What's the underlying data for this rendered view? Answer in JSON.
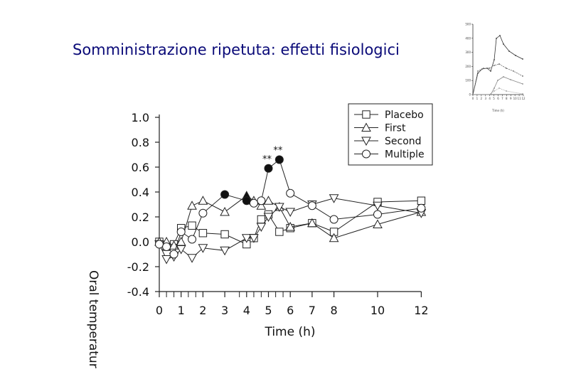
{
  "slide": {
    "title": "Somministrazione ripetuta: effetti fisiologici"
  },
  "chart_data": {
    "type": "line",
    "xlabel": "Time (h)",
    "ylabel": "Oral temperatur",
    "xlim": [
      0,
      12
    ],
    "ylim": [
      -0.4,
      1.0
    ],
    "xticks": [
      0,
      1,
      2,
      3,
      4,
      5,
      6,
      7,
      8,
      10,
      12
    ],
    "yticks": [
      1.0,
      0.8,
      0.6,
      0.4,
      0.2,
      0.0,
      -0.2,
      -0.4
    ],
    "ytick_labels": [
      "1.0",
      "0.8",
      "0.6",
      "0.4",
      "0.2",
      "0.0",
      "-0.2",
      "-0.4"
    ],
    "minor_xticks": [
      0.33,
      0.67,
      1.33,
      1.67,
      3.67,
      4.33,
      4.67,
      5.33,
      5.67
    ],
    "grid": false,
    "legend_position": "top-right",
    "series": [
      {
        "name": "Placebo",
        "marker": "square",
        "points": [
          [
            0,
            0.0
          ],
          [
            0.33,
            -0.04
          ],
          [
            0.67,
            -0.02
          ],
          [
            1,
            0.11
          ],
          [
            1.5,
            0.13
          ],
          [
            2,
            0.07
          ],
          [
            3,
            0.06
          ],
          [
            4,
            -0.02
          ],
          [
            4.33,
            0.03
          ],
          [
            4.67,
            0.18
          ],
          [
            5,
            0.22
          ],
          [
            5.5,
            0.08
          ],
          [
            6,
            0.11
          ],
          [
            7,
            0.15
          ],
          [
            8,
            0.08
          ],
          [
            10,
            0.32
          ],
          [
            12,
            0.33
          ]
        ]
      },
      {
        "name": "First",
        "marker": "triangle-up",
        "points": [
          [
            0,
            0.0
          ],
          [
            0.33,
            0.0
          ],
          [
            0.67,
            -0.03
          ],
          [
            1,
            0.0
          ],
          [
            1.5,
            0.29
          ],
          [
            2,
            0.33
          ],
          [
            3,
            0.24
          ],
          [
            4,
            0.37
          ],
          [
            4.33,
            0.33
          ],
          [
            4.67,
            0.29
          ],
          [
            5,
            0.33
          ],
          [
            5.5,
            0.28
          ],
          [
            6,
            0.12
          ],
          [
            7,
            0.15
          ],
          [
            8,
            0.03
          ],
          [
            10,
            0.14
          ],
          [
            12,
            0.24
          ]
        ]
      },
      {
        "name": "Second",
        "marker": "triangle-down",
        "points": [
          [
            0,
            -0.02
          ],
          [
            0.33,
            -0.14
          ],
          [
            0.67,
            -0.12
          ],
          [
            1,
            -0.06
          ],
          [
            1.5,
            -0.13
          ],
          [
            2,
            -0.05
          ],
          [
            3,
            -0.07
          ],
          [
            4,
            0.03
          ],
          [
            4.33,
            0.03
          ],
          [
            4.67,
            0.12
          ],
          [
            5,
            0.2
          ],
          [
            5.5,
            0.28
          ],
          [
            6,
            0.24
          ],
          [
            7,
            0.3
          ],
          [
            8,
            0.35
          ],
          [
            10,
            0.29
          ],
          [
            12,
            0.23
          ]
        ]
      },
      {
        "name": "Multiple",
        "marker": "circle",
        "points": [
          [
            0,
            -0.02
          ],
          [
            0.33,
            -0.04
          ],
          [
            0.67,
            -0.1
          ],
          [
            1,
            0.08
          ],
          [
            1.5,
            0.02
          ],
          [
            2,
            0.23
          ],
          [
            3,
            0.38
          ],
          [
            4,
            0.33
          ],
          [
            4.33,
            0.31
          ],
          [
            4.67,
            0.33
          ],
          [
            5,
            0.59
          ],
          [
            5.5,
            0.66
          ],
          [
            6,
            0.39
          ],
          [
            7,
            0.29
          ],
          [
            8,
            0.18
          ],
          [
            10,
            0.22
          ],
          [
            12,
            0.27
          ]
        ]
      }
    ],
    "significant_points": [
      {
        "series": "Multiple",
        "x": 3,
        "y": 0.38
      },
      {
        "series": "First",
        "x": 4,
        "y": 0.37
      },
      {
        "series": "Multiple",
        "x": 4,
        "y": 0.33
      },
      {
        "series": "Multiple",
        "x": 5,
        "y": 0.59
      },
      {
        "series": "Multiple",
        "x": 5.5,
        "y": 0.66
      }
    ],
    "annotations": [
      {
        "text": "**",
        "x": 5,
        "y": 0.59
      },
      {
        "text": "**",
        "x": 5.5,
        "y": 0.66
      }
    ]
  },
  "thumbnail_chart": {
    "type": "line",
    "xlabel": "Time (h)",
    "ytick_labels": [
      "500",
      "400",
      "300",
      "200",
      "100",
      "0"
    ],
    "xtick_labels": [
      "0",
      "1",
      "2",
      "3",
      "4",
      "5",
      "6",
      "7",
      "8",
      "9",
      "10",
      "11",
      "12"
    ]
  }
}
